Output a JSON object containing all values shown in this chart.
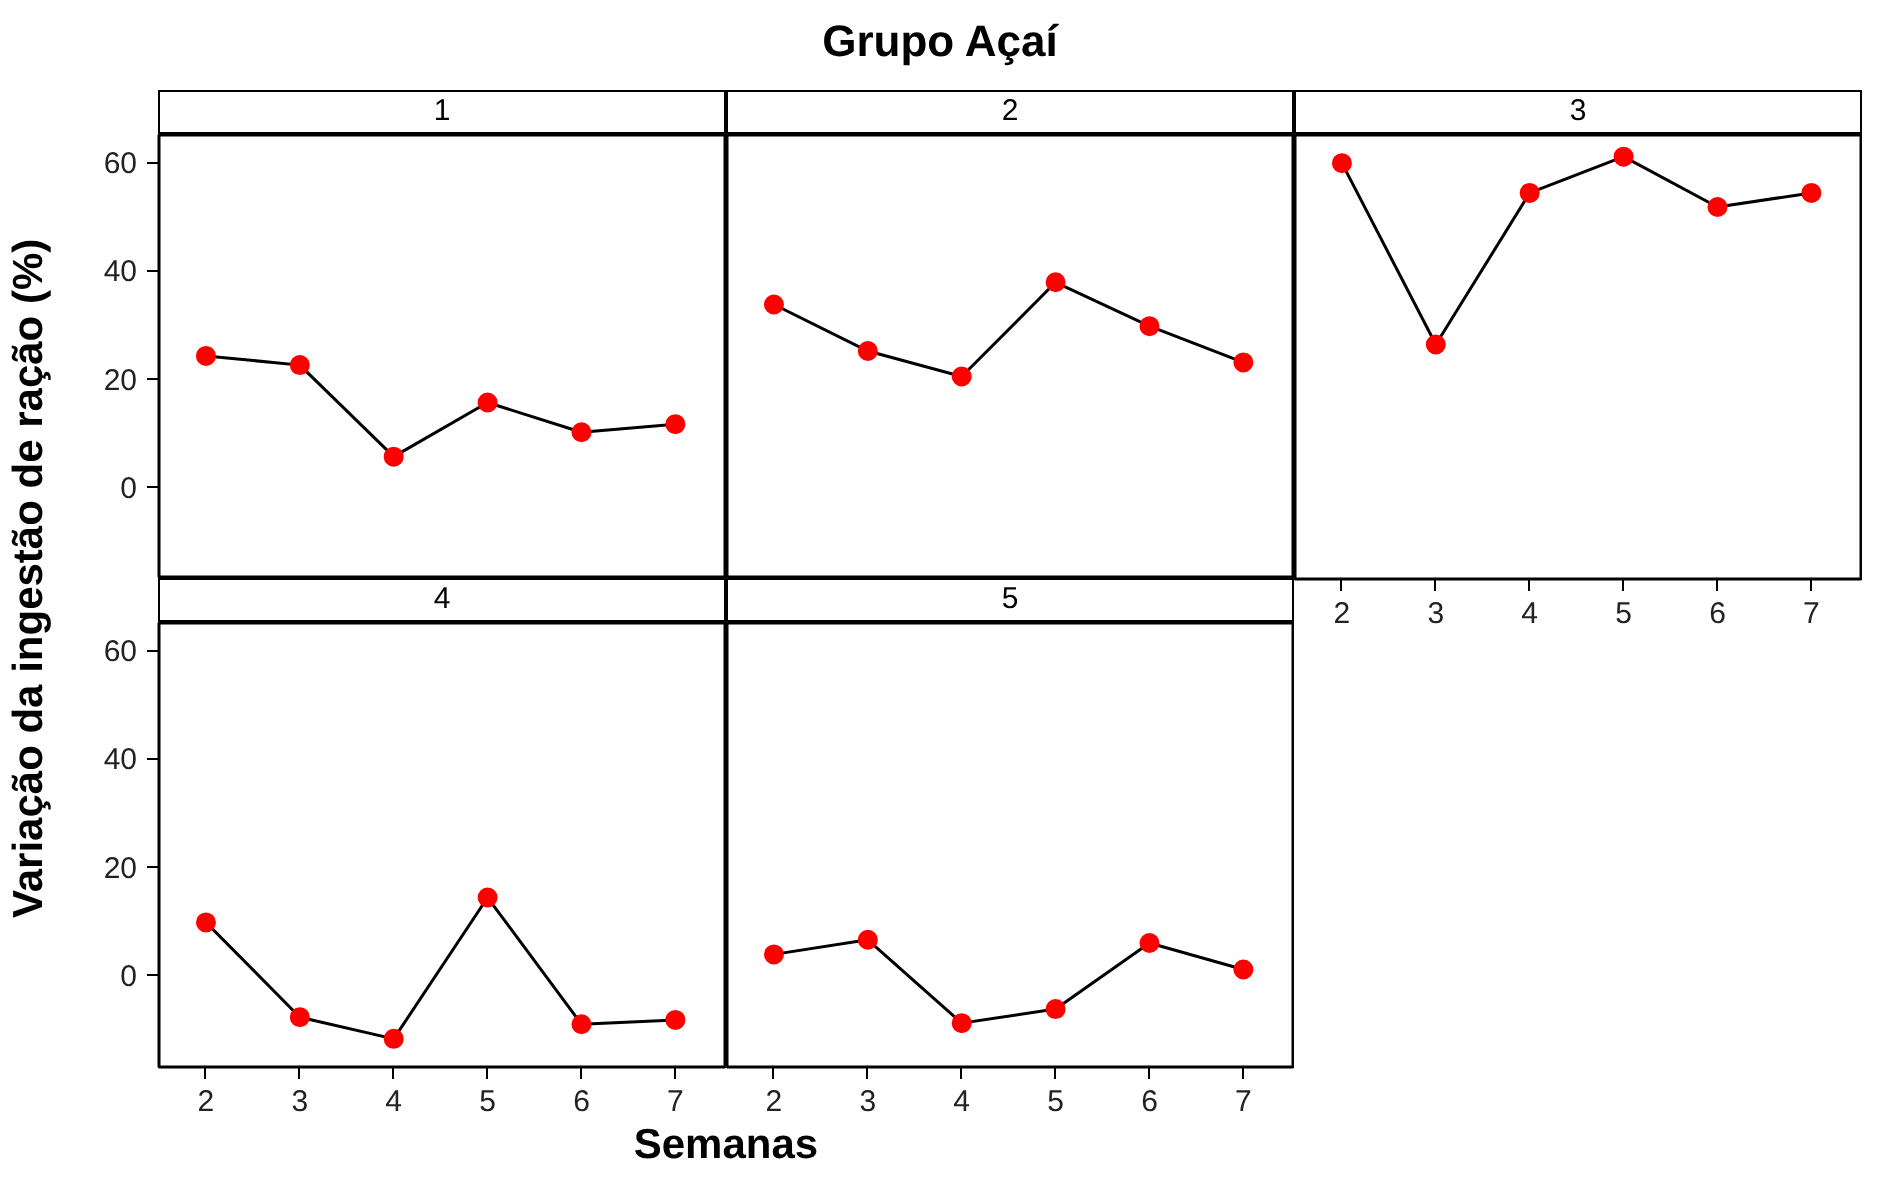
{
  "chart_data": [
    {
      "type": "line",
      "annotations": [
        "Grupo Açaí"
      ],
      "subtitle": "1",
      "ylabel": "Variação da ingestão de ração (%)",
      "x": [
        2,
        3,
        4,
        5,
        6,
        7
      ],
      "xlim": [
        1.5,
        7.55
      ],
      "ylim": [
        -17,
        65
      ],
      "xticks": [
        2,
        3,
        4,
        5,
        6,
        7
      ],
      "yticks": [
        0,
        20,
        40,
        60
      ],
      "tick_labels": "y",
      "marker": "circle",
      "series": [
        {
          "color": "#ff0000",
          "values": [
            24.2,
            22.5,
            5.6,
            15.6,
            10.1,
            11.6
          ]
        }
      ]
    },
    {
      "type": "line",
      "subtitle": "2",
      "x": [
        2,
        3,
        4,
        5,
        6,
        7
      ],
      "xlim": [
        1.5,
        7.55
      ],
      "ylim": [
        -17,
        65
      ],
      "xticks": [
        2,
        3,
        4,
        5,
        6,
        7
      ],
      "yticks": [
        0,
        20,
        40,
        60
      ],
      "tick_labels": false,
      "marker": "circle",
      "series": [
        {
          "color": "#ff0000",
          "values": [
            33.7,
            25.1,
            20.4,
            37.8,
            29.7,
            23.0
          ]
        }
      ]
    },
    {
      "type": "line",
      "subtitle": "3",
      "x": [
        2,
        3,
        4,
        5,
        6,
        7
      ],
      "xlim": [
        1.5,
        7.55
      ],
      "ylim": [
        -17,
        65
      ],
      "xticks": [
        2,
        3,
        4,
        5,
        6,
        7
      ],
      "yticks": [
        0,
        20,
        40,
        60
      ],
      "tick_labels": "x",
      "marker": "circle",
      "series": [
        {
          "color": "#ff0000",
          "values": [
            59.8,
            26.3,
            54.3,
            61.0,
            51.7,
            54.3
          ]
        }
      ]
    },
    {
      "type": "line",
      "subtitle": "4",
      "x": [
        2,
        3,
        4,
        5,
        6,
        7
      ],
      "xlim": [
        1.5,
        7.55
      ],
      "ylim": [
        -17,
        65
      ],
      "xticks": [
        2,
        3,
        4,
        5,
        6,
        7
      ],
      "yticks": [
        0,
        20,
        40,
        60
      ],
      "marker": "circle",
      "series": [
        {
          "color": "#ff0000",
          "values": [
            9.7,
            -7.8,
            -11.8,
            14.3,
            -9.1,
            -8.3
          ]
        }
      ]
    },
    {
      "type": "line",
      "subtitle": "5",
      "xlabel": "Semanas",
      "x": [
        2,
        3,
        4,
        5,
        6,
        7
      ],
      "xlim": [
        1.5,
        7.55
      ],
      "ylim": [
        -17,
        65
      ],
      "xticks": [
        2,
        3,
        4,
        5,
        6,
        7
      ],
      "yticks": [
        0,
        20,
        40,
        60
      ],
      "tick_labels": "x",
      "marker": "circle",
      "series": [
        {
          "color": "#ff0000",
          "values": [
            3.8,
            6.5,
            -8.9,
            -6.3,
            5.9,
            1.0
          ]
        }
      ]
    }
  ]
}
